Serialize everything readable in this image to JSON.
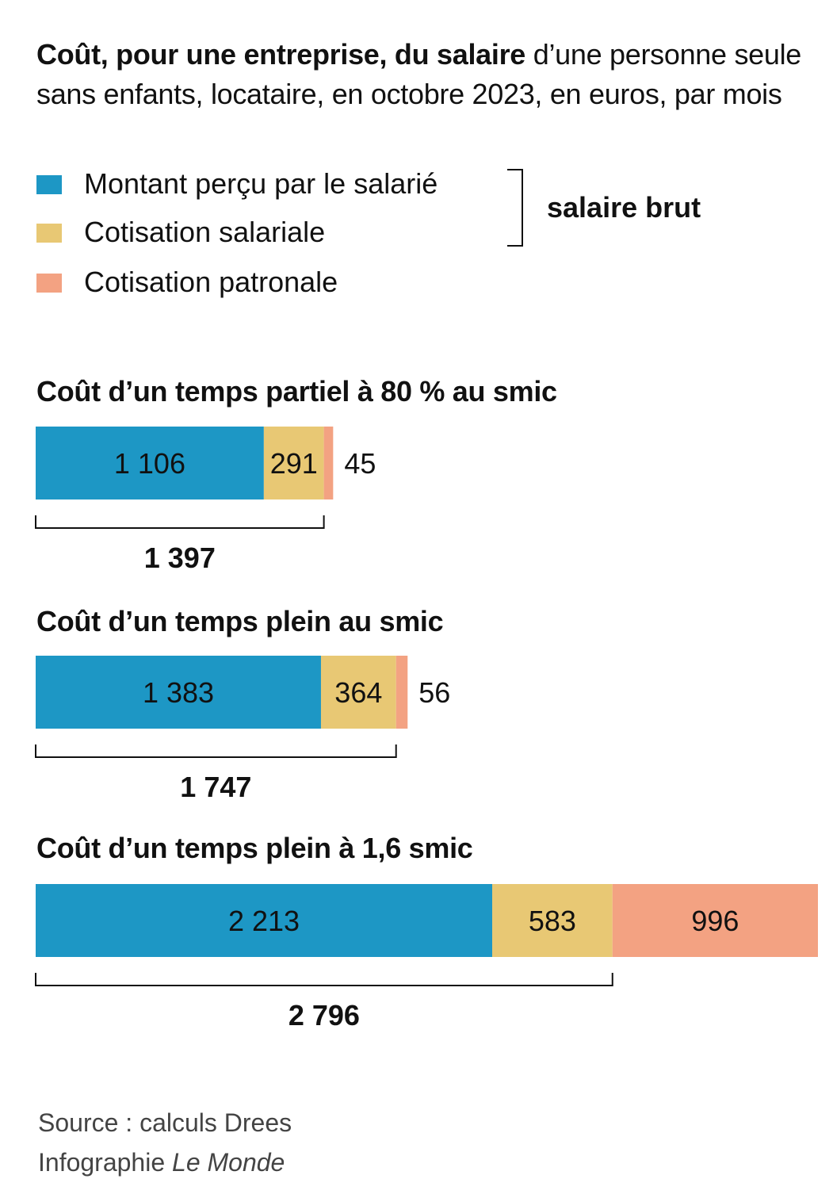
{
  "title": {
    "bold": "Coût, pour une entreprise, du salaire",
    "rest": " d’une personne seule sans enfants, locataire, en octobre 2023, en euros, par mois"
  },
  "colors": {
    "salarie": "#1d97c5",
    "cotisation_salariale": "#e8c874",
    "cotisation_patronale": "#f3a282"
  },
  "legend": [
    {
      "label": "Montant perçu par le salarié",
      "color": "#1d97c5"
    },
    {
      "label": "Cotisation salariale",
      "color": "#e8c874"
    },
    {
      "label": "Cotisation patronale",
      "color": "#f3a282"
    }
  ],
  "bracket_label": "salaire brut",
  "chart_data": {
    "type": "bar",
    "stacked": true,
    "orientation": "horizontal",
    "series": [
      {
        "name": "Montant perçu par le salarié",
        "color": "#1d97c5"
      },
      {
        "name": "Cotisation salariale",
        "color": "#e8c874"
      },
      {
        "name": "Cotisation patronale",
        "color": "#f3a282"
      }
    ],
    "groups": [
      {
        "title": "Coût d’un temps partiel à 80 % au smic",
        "values": [
          1106,
          291,
          45
        ],
        "labels": [
          "1 106",
          "291",
          "45"
        ],
        "total": 1397,
        "total_label": "1 397"
      },
      {
        "title": "Coût d’un temps plein au smic",
        "values": [
          1383,
          364,
          56
        ],
        "labels": [
          "1 383",
          "364",
          "56"
        ],
        "total": 1747,
        "total_label": "1 747"
      },
      {
        "title": "Coût d’un temps plein à 1,6 smic",
        "values": [
          2213,
          583,
          996
        ],
        "labels": [
          "2 213",
          "583",
          "996"
        ],
        "total": 2796,
        "total_label": "2 796"
      }
    ]
  },
  "source": {
    "line1": "Source : calculs Drees",
    "line2_prefix": "Infographie ",
    "line2_italic": "Le Monde"
  }
}
